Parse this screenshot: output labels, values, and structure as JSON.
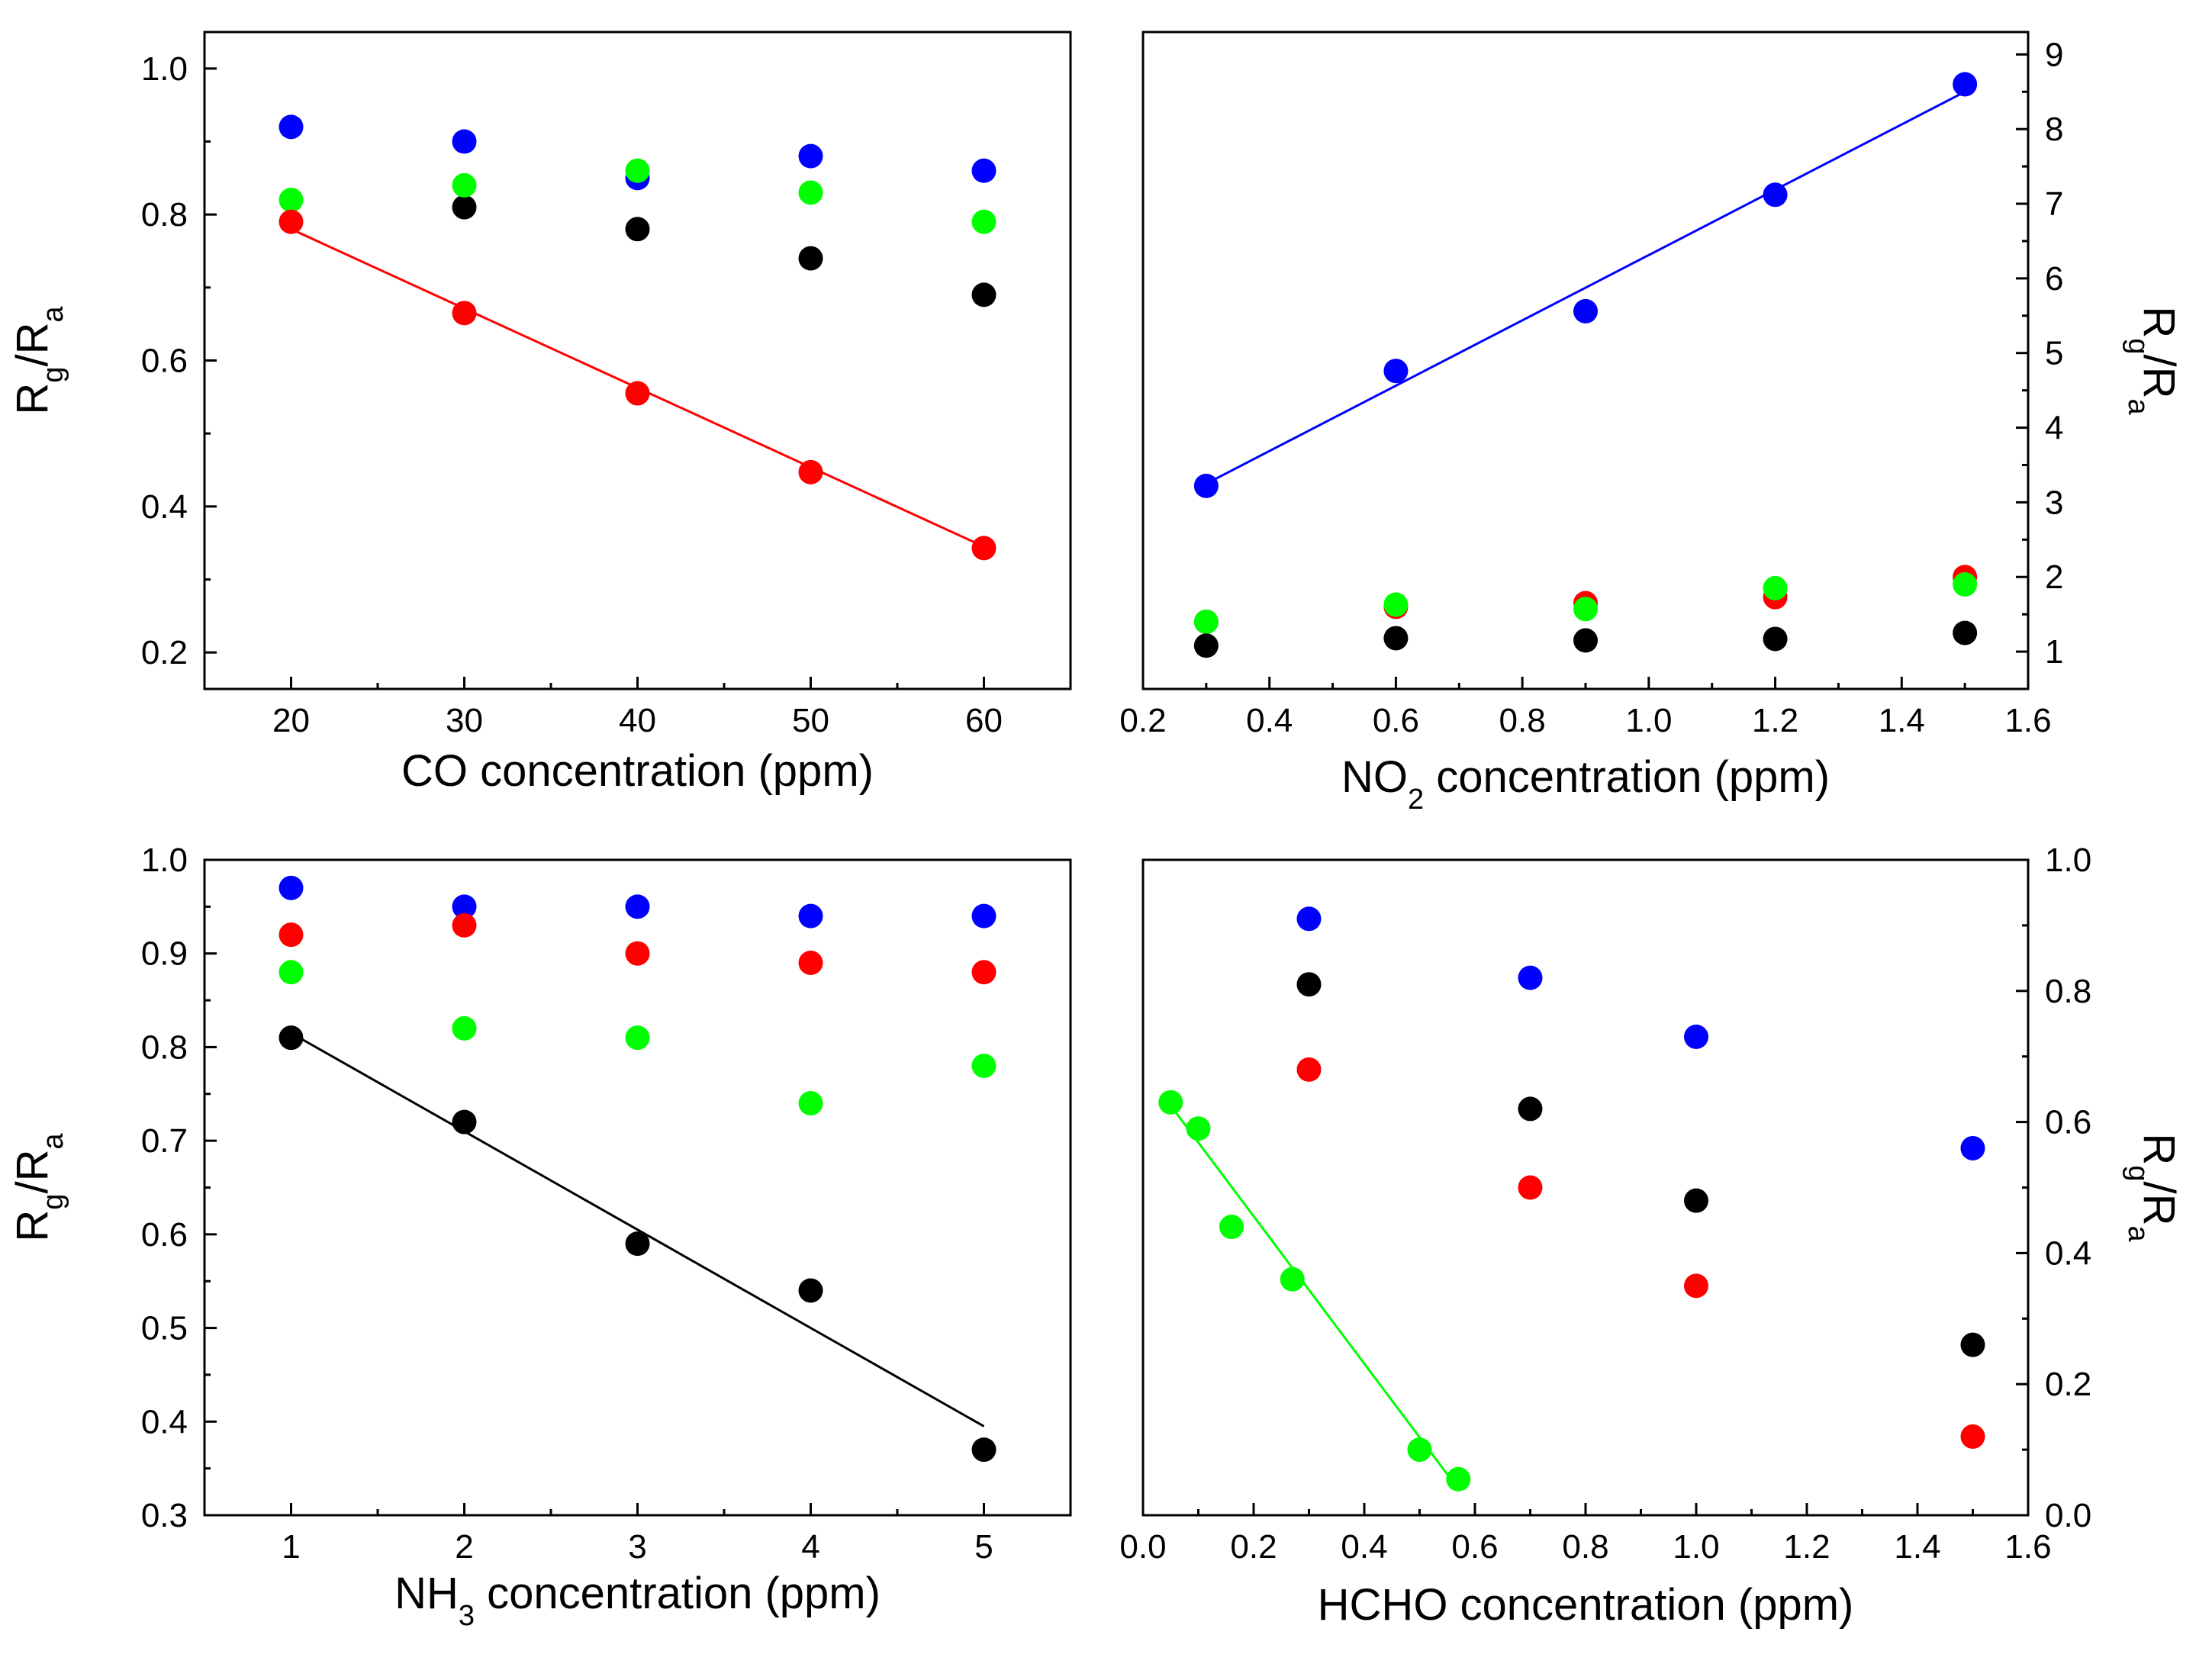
{
  "chart_data": [
    {
      "id": "co",
      "type": "scatter",
      "x_axis": {
        "title_parts": [
          {
            "t": "CO concentration (ppm)"
          }
        ],
        "range": [
          15,
          65
        ],
        "ticks": [
          20,
          30,
          40,
          50,
          60
        ],
        "tick_labels": [
          "20",
          "30",
          "40",
          "50",
          "60"
        ]
      },
      "y_axis": {
        "side": "left",
        "range": [
          0.15,
          1.05
        ],
        "ticks": [
          0.2,
          0.4,
          0.6,
          0.8,
          1.0
        ],
        "tick_labels": [
          "0.2",
          "0.4",
          "0.6",
          "0.8",
          "1.0"
        ],
        "title_parts": [
          {
            "t": "R"
          },
          {
            "t": "g",
            "sub": true
          },
          {
            "t": "/R"
          },
          {
            "t": "a",
            "sub": true
          }
        ]
      },
      "series": [
        {
          "name": "blue",
          "color": "#0000ff",
          "x": [
            20,
            30,
            40,
            50,
            60
          ],
          "y": [
            0.92,
            0.9,
            0.85,
            0.88,
            0.86
          ]
        },
        {
          "name": "black",
          "color": "#000000",
          "x": [
            30,
            40,
            50,
            60
          ],
          "y": [
            0.81,
            0.78,
            0.74,
            0.69
          ]
        },
        {
          "name": "green",
          "color": "#00ff00",
          "x": [
            20,
            30,
            40,
            50,
            60
          ],
          "y": [
            0.82,
            0.84,
            0.86,
            0.83,
            0.79
          ]
        },
        {
          "name": "red",
          "color": "#ff0000",
          "x": [
            20,
            30,
            40,
            50,
            60
          ],
          "y": [
            0.79,
            0.665,
            0.555,
            0.447,
            0.343
          ]
        }
      ],
      "fit": {
        "color": "#ff0000",
        "x": [
          20,
          60
        ],
        "y": [
          0.78,
          0.345
        ]
      }
    },
    {
      "id": "no2",
      "type": "scatter",
      "x_axis": {
        "title_parts": [
          {
            "t": "NO"
          },
          {
            "t": "2",
            "sub": true
          },
          {
            "t": " concentration (ppm)"
          }
        ],
        "range": [
          0.2,
          1.6
        ],
        "ticks": [
          0.2,
          0.4,
          0.6,
          0.8,
          1.0,
          1.2,
          1.4,
          1.6
        ],
        "tick_labels": [
          "0.2",
          "0.4",
          "0.6",
          "0.8",
          "1.0",
          "1.2",
          "1.4",
          "1.6"
        ]
      },
      "y_axis": {
        "side": "right",
        "range": [
          0.5,
          9.3
        ],
        "ticks": [
          1,
          2,
          3,
          4,
          5,
          6,
          7,
          8,
          9
        ],
        "tick_labels": [
          "1",
          "2",
          "3",
          "4",
          "5",
          "6",
          "7",
          "8",
          "9"
        ],
        "title_parts": [
          {
            "t": "R"
          },
          {
            "t": "g",
            "sub": true
          },
          {
            "t": "/R"
          },
          {
            "t": "a",
            "sub": true
          }
        ]
      },
      "series": [
        {
          "name": "red",
          "color": "#ff0000",
          "x": [
            0.3,
            0.6,
            0.9,
            1.2,
            1.5
          ],
          "y": [
            1.4,
            1.6,
            1.65,
            1.73,
            2.0
          ]
        },
        {
          "name": "green",
          "color": "#00ff00",
          "x": [
            0.3,
            0.6,
            0.9,
            1.2,
            1.5
          ],
          "y": [
            1.4,
            1.63,
            1.57,
            1.85,
            1.9
          ]
        },
        {
          "name": "black",
          "color": "#000000",
          "x": [
            0.3,
            0.6,
            0.9,
            1.2,
            1.5
          ],
          "y": [
            1.08,
            1.18,
            1.15,
            1.17,
            1.25
          ]
        },
        {
          "name": "blue",
          "color": "#0000ff",
          "x": [
            0.3,
            0.6,
            0.9,
            1.2,
            1.5
          ],
          "y": [
            3.22,
            4.76,
            5.56,
            7.12,
            8.6
          ]
        }
      ],
      "fit": {
        "color": "#0000ff",
        "x": [
          0.3,
          1.5
        ],
        "y": [
          3.25,
          8.5
        ]
      }
    },
    {
      "id": "nh3",
      "type": "scatter",
      "x_axis": {
        "title_parts": [
          {
            "t": "NH"
          },
          {
            "t": "3",
            "sub": true
          },
          {
            "t": " concentration (ppm)"
          }
        ],
        "range": [
          0.5,
          5.5
        ],
        "ticks": [
          1,
          2,
          3,
          4,
          5
        ],
        "tick_labels": [
          "1",
          "2",
          "3",
          "4",
          "5"
        ]
      },
      "y_axis": {
        "side": "left",
        "range": [
          0.3,
          1.0
        ],
        "ticks": [
          0.3,
          0.4,
          0.5,
          0.6,
          0.7,
          0.8,
          0.9,
          1.0
        ],
        "tick_labels": [
          "0.3",
          "0.4",
          "0.5",
          "0.6",
          "0.7",
          "0.8",
          "0.9",
          "1.0"
        ],
        "title_parts": [
          {
            "t": "R"
          },
          {
            "t": "g",
            "sub": true
          },
          {
            "t": "/R"
          },
          {
            "t": "a",
            "sub": true
          }
        ]
      },
      "series": [
        {
          "name": "blue",
          "color": "#0000ff",
          "x": [
            1,
            2,
            3,
            4,
            5
          ],
          "y": [
            0.97,
            0.95,
            0.95,
            0.94,
            0.94
          ]
        },
        {
          "name": "red",
          "color": "#ff0000",
          "x": [
            1,
            2,
            3,
            4,
            5
          ],
          "y": [
            0.92,
            0.93,
            0.9,
            0.89,
            0.88
          ]
        },
        {
          "name": "green",
          "color": "#00ff00",
          "x": [
            1,
            2,
            3,
            4,
            5
          ],
          "y": [
            0.88,
            0.82,
            0.81,
            0.74,
            0.78
          ]
        },
        {
          "name": "black",
          "color": "#000000",
          "x": [
            1,
            2,
            3,
            4,
            5
          ],
          "y": [
            0.81,
            0.72,
            0.59,
            0.54,
            0.37
          ]
        }
      ],
      "fit": {
        "color": "#000000",
        "x": [
          1,
          5
        ],
        "y": [
          0.815,
          0.395
        ]
      }
    },
    {
      "id": "hcho",
      "type": "scatter",
      "x_axis": {
        "title_parts": [
          {
            "t": "HCHO concentration (ppm)"
          }
        ],
        "range": [
          0.0,
          1.6
        ],
        "ticks": [
          0.0,
          0.2,
          0.4,
          0.6,
          0.8,
          1.0,
          1.2,
          1.4,
          1.6
        ],
        "tick_labels": [
          "0.0",
          "0.2",
          "0.4",
          "0.6",
          "0.8",
          "1.0",
          "1.2",
          "1.4",
          "1.6"
        ]
      },
      "y_axis": {
        "side": "right",
        "range": [
          0.0,
          1.0
        ],
        "ticks": [
          0.0,
          0.2,
          0.4,
          0.6,
          0.8,
          1.0
        ],
        "tick_labels": [
          "0.0",
          "0.2",
          "0.4",
          "0.6",
          "0.8",
          "1.0"
        ],
        "title_parts": [
          {
            "t": "R"
          },
          {
            "t": "g",
            "sub": true
          },
          {
            "t": "/R"
          },
          {
            "t": "a",
            "sub": true
          }
        ]
      },
      "series": [
        {
          "name": "blue",
          "color": "#0000ff",
          "x": [
            0.3,
            0.7,
            1.0,
            1.5
          ],
          "y": [
            0.91,
            0.82,
            0.73,
            0.56
          ]
        },
        {
          "name": "black",
          "color": "#000000",
          "x": [
            0.3,
            0.7,
            1.0,
            1.5
          ],
          "y": [
            0.81,
            0.62,
            0.48,
            0.26
          ]
        },
        {
          "name": "red",
          "color": "#ff0000",
          "x": [
            0.3,
            0.7,
            1.0,
            1.5
          ],
          "y": [
            0.68,
            0.5,
            0.35,
            0.12
          ]
        },
        {
          "name": "green",
          "color": "#00ff00",
          "x": [
            0.05,
            0.1,
            0.16,
            0.27,
            0.5,
            0.57
          ],
          "y": [
            0.63,
            0.59,
            0.44,
            0.36,
            0.1,
            0.055
          ]
        }
      ],
      "fit": {
        "color": "#00ff00",
        "x": [
          0.05,
          0.57
        ],
        "y": [
          0.625,
          0.04
        ]
      }
    }
  ]
}
